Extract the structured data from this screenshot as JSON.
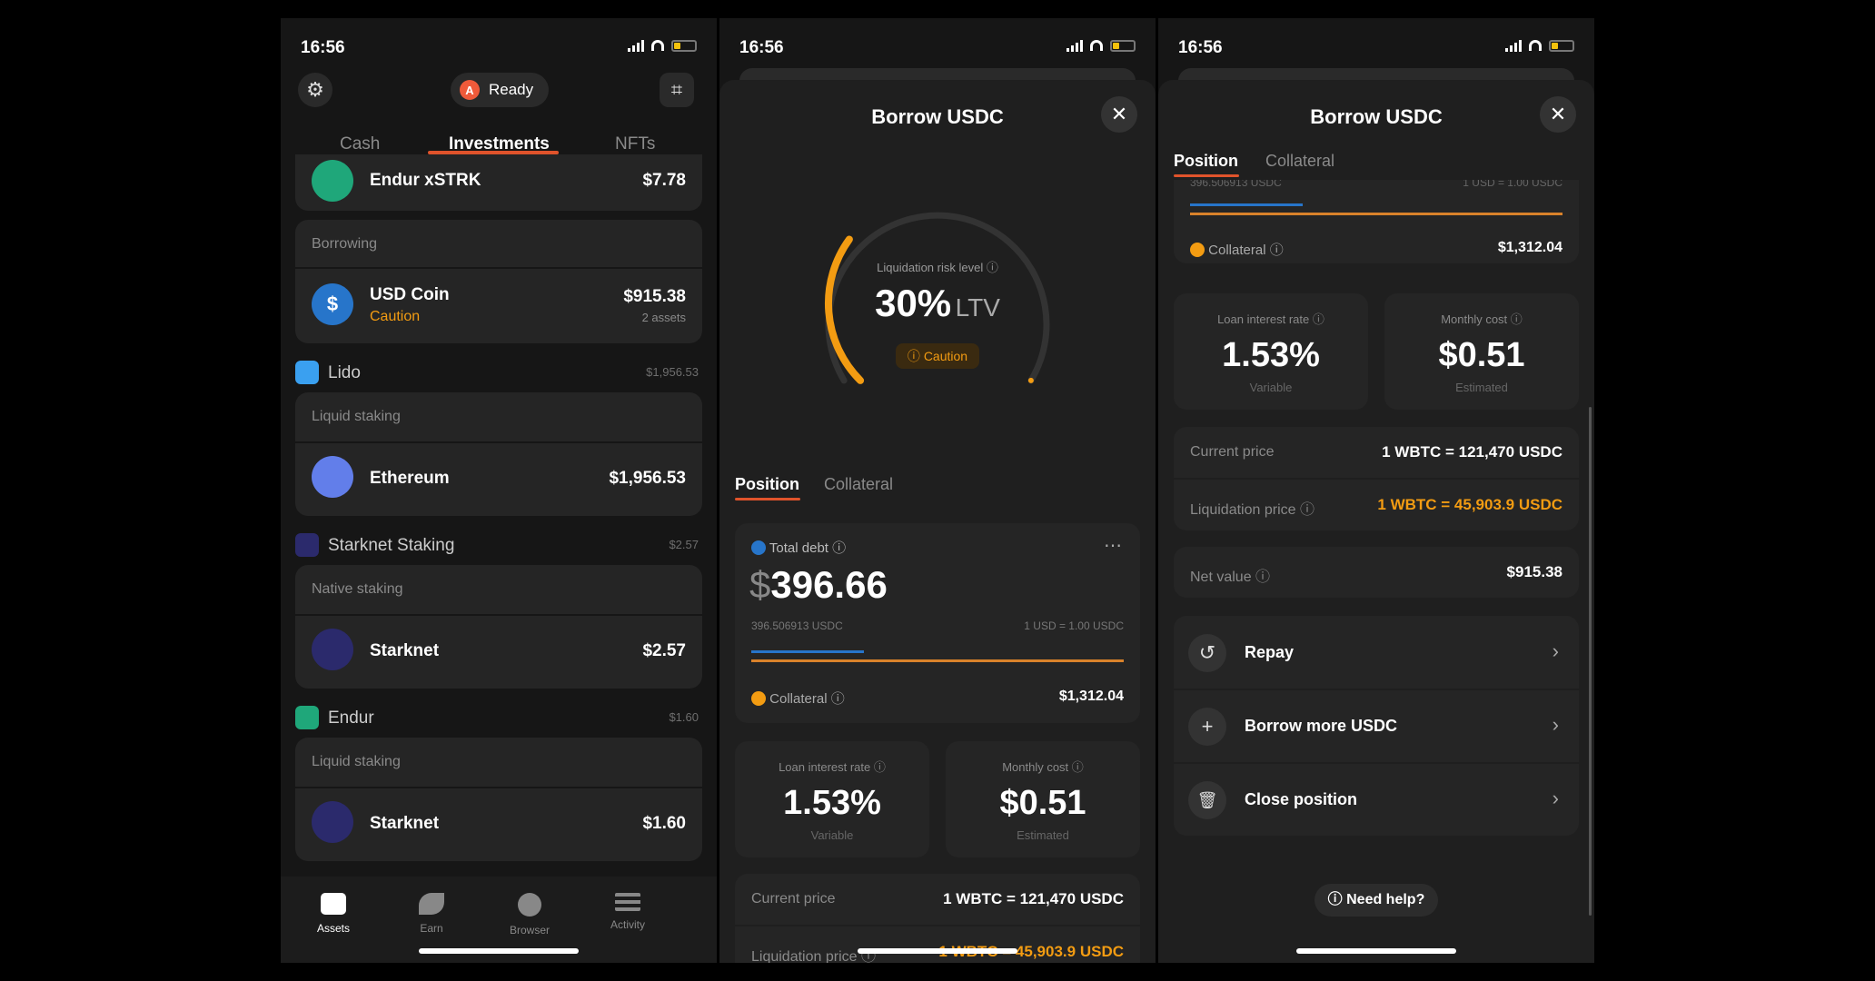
{
  "status": {
    "time": "16:56"
  },
  "colors": {
    "accent": "#e0532b",
    "caution": "#f39c12",
    "usdc": "#2775ca",
    "eth": "#627eea"
  },
  "screen1": {
    "ready_label": "Ready",
    "tabs": [
      "Cash",
      "Investments",
      "NFTs"
    ],
    "active_tab": "Investments",
    "top_item": {
      "name": "Endur xSTRK",
      "value": "$7.78"
    },
    "borrowing": {
      "label": "Borrowing",
      "item": {
        "name": "USD Coin",
        "status": "Caution",
        "value": "$915.38",
        "sub": "2 assets"
      }
    },
    "groups": [
      {
        "name": "Lido",
        "total": "$1,956.53",
        "section": "Liquid staking",
        "item": {
          "name": "Ethereum",
          "value": "$1,956.53"
        }
      },
      {
        "name": "Starknet Staking",
        "total": "$2.57",
        "section": "Native staking",
        "item": {
          "name": "Starknet",
          "value": "$2.57"
        }
      },
      {
        "name": "Endur",
        "total": "$1.60",
        "section": "Liquid staking",
        "item": {
          "name": "Starknet",
          "value": "$1.60"
        }
      }
    ],
    "nav": [
      "Assets",
      "Earn",
      "Browser",
      "Activity"
    ]
  },
  "screen2": {
    "title": "Borrow USDC",
    "gauge": {
      "label": "Liquidation risk level",
      "value": "30%",
      "unit": "LTV",
      "badge": "Caution",
      "fill_fraction": 0.3
    },
    "tabs": [
      "Position",
      "Collateral"
    ],
    "debt": {
      "label": "Total debt",
      "currency": "$",
      "amount": "396.66",
      "sub_left": "396.506913 USDC",
      "sub_right": "1 USD = 1.00 USDC",
      "collateral_label": "Collateral",
      "collateral_value": "$1,312.04"
    },
    "rate": {
      "label": "Loan interest rate",
      "value": "1.53%",
      "sub": "Variable"
    },
    "cost": {
      "label": "Monthly cost",
      "value": "$0.51",
      "sub": "Estimated"
    },
    "current_price": {
      "label": "Current price",
      "value": "1 WBTC = 121,470 USDC"
    },
    "liq_price": {
      "label": "Liquidation price",
      "value": "1 WBTC = 45,903.9 USDC"
    }
  },
  "screen3": {
    "title": "Borrow USDC",
    "tabs": [
      "Position",
      "Collateral"
    ],
    "clipped_left": "396.506913 USDC",
    "clipped_right": "1 USD = 1.00 USDC",
    "collateral_label": "Collateral",
    "collateral_value": "$1,312.04",
    "rate": {
      "label": "Loan interest rate",
      "value": "1.53%",
      "sub": "Variable"
    },
    "cost": {
      "label": "Monthly cost",
      "value": "$0.51",
      "sub": "Estimated"
    },
    "current_price": {
      "label": "Current price",
      "value": "1 WBTC = 121,470 USDC"
    },
    "liq_price": {
      "label": "Liquidation price",
      "value": "1 WBTC = 45,903.9 USDC"
    },
    "net_value": {
      "label": "Net value",
      "value": "$915.38"
    },
    "actions": [
      "Repay",
      "Borrow more USDC",
      "Close position"
    ],
    "help": "Need help?"
  }
}
